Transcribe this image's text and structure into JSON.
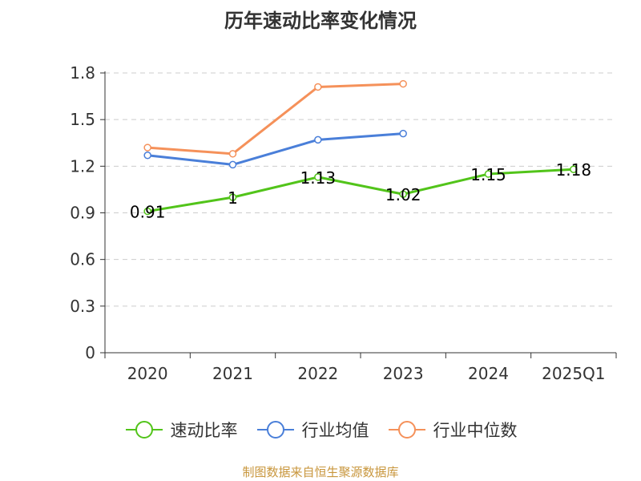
{
  "title": "历年速动比率变化情况",
  "source": "制图数据来自恒生聚源数据库",
  "colors": {
    "axis": "#333333",
    "grid": "#cccccc",
    "text": "#333333",
    "source": "#c8963c"
  },
  "chart_data": {
    "type": "line",
    "title": "历年速动比率变化情况",
    "categories": [
      "2020",
      "2021",
      "2022",
      "2023",
      "2024",
      "2025Q1"
    ],
    "ylim": [
      0,
      1.8
    ],
    "yticks": [
      "0",
      "0.3",
      "0.6",
      "0.9",
      "1.2",
      "1.5",
      "1.8"
    ],
    "grid": true,
    "legend_position": "bottom",
    "series": [
      {
        "name": "速动比率",
        "color": "#52c41a",
        "values": [
          0.91,
          1,
          1.13,
          1.02,
          1.15,
          1.18
        ],
        "labels": [
          "0.91",
          "1",
          "1.13",
          "1.02",
          "1.15",
          "1.18"
        ]
      },
      {
        "name": "行业均值",
        "color": "#4a7fd9",
        "values": [
          1.27,
          1.21,
          1.37,
          1.41,
          null,
          null
        ],
        "labels": []
      },
      {
        "name": "行业中位数",
        "color": "#f5915a",
        "values": [
          1.32,
          1.28,
          1.71,
          1.73,
          null,
          null
        ],
        "labels": []
      }
    ]
  }
}
